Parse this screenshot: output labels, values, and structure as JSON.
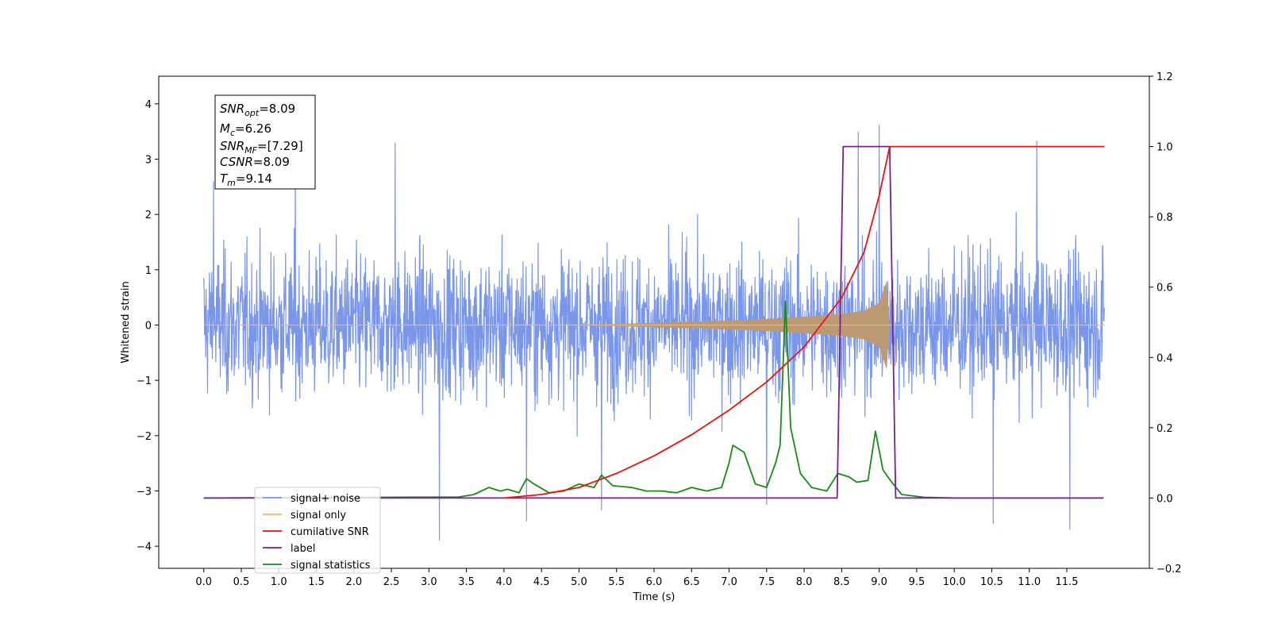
{
  "chart_data": {
    "type": "line",
    "xlabel": "Time (s)",
    "ylabel": "Whitened strain",
    "xlim": [
      -0.6,
      12.6
    ],
    "ylim": [
      -4.4,
      4.5
    ],
    "y2lim": [
      -0.2,
      1.2
    ],
    "x_ticks": [
      "0.0",
      "0.5",
      "1.0",
      "1.5",
      "2.0",
      "2.5",
      "3.0",
      "3.5",
      "4.0",
      "4.5",
      "5.0",
      "5.5",
      "6.0",
      "6.5",
      "7.0",
      "7.5",
      "8.0",
      "8.5",
      "9.0",
      "9.5",
      "10.0",
      "10.5",
      "11.0",
      "11.5"
    ],
    "x_tick_values": [
      0,
      0.5,
      1,
      1.5,
      2,
      2.5,
      3,
      3.5,
      4,
      4.5,
      5,
      5.5,
      6,
      6.5,
      7,
      7.5,
      8,
      8.5,
      9,
      9.5,
      10,
      10.5,
      11,
      11.5
    ],
    "y_ticks": [
      "−4",
      "−3",
      "−2",
      "−1",
      "0",
      "1",
      "2",
      "3",
      "4"
    ],
    "y_tick_values": [
      -4,
      -3,
      -2,
      -1,
      0,
      1,
      2,
      3,
      4
    ],
    "y2_ticks": [
      "−0.2",
      "0.0",
      "0.2",
      "0.4",
      "0.6",
      "0.8",
      "1.0",
      "1.2"
    ],
    "y2_tick_values": [
      -0.2,
      0,
      0.2,
      0.4,
      0.6,
      0.8,
      1.0,
      1.2
    ],
    "legend_placement": "lower-left",
    "annotation": {
      "lines": [
        {
          "base": "SNR",
          "sub": "opt",
          "rest": "=8.09"
        },
        {
          "base": "M",
          "sub": "c",
          "rest": "=6.26"
        },
        {
          "base": "SNR",
          "sub": "MF",
          "rest": "=[7.29]"
        },
        {
          "base": "CSNR",
          "sub": "",
          "rest": "=8.09"
        },
        {
          "base": "T",
          "sub": "m",
          "rest": "=9.14"
        }
      ]
    },
    "series": [
      {
        "name": "signal+ noise",
        "axis": "left",
        "color": "#7a96e8",
        "note_style": "noise band",
        "x_range": [
          0.0,
          12.0
        ],
        "typical_amplitude": [
          -2.3,
          2.2
        ],
        "spikes": [
          [
            3.14,
            -3.9
          ],
          [
            4.3,
            -3.55
          ],
          [
            5.3,
            -3.35
          ],
          [
            8.72,
            3.5
          ],
          [
            9.0,
            3.62
          ],
          [
            10.52,
            -3.6
          ],
          [
            11.1,
            3.33
          ],
          [
            11.54,
            -3.7
          ],
          [
            7.5,
            -3.25
          ],
          [
            0.13,
            2.6
          ],
          [
            2.55,
            3.3
          ],
          [
            1.22,
            3.1
          ]
        ]
      },
      {
        "name": "signal only",
        "axis": "left",
        "color": "#f2b36b",
        "note_style": "chirp",
        "points": [
          [
            0,
            0
          ],
          [
            4.5,
            0
          ],
          [
            5.5,
            0.02
          ],
          [
            6.5,
            0.06
          ],
          [
            7.0,
            0.08
          ],
          [
            7.5,
            0.11
          ],
          [
            8.0,
            0.15
          ],
          [
            8.5,
            0.2
          ],
          [
            8.8,
            0.26
          ],
          [
            9.0,
            0.4
          ],
          [
            9.1,
            0.8
          ],
          [
            9.14,
            0
          ],
          [
            12.0,
            0
          ]
        ]
      },
      {
        "name": "cumilative SNR",
        "axis": "right",
        "color": "#ee1111",
        "points": [
          [
            4.0,
            0.0
          ],
          [
            4.5,
            0.01
          ],
          [
            5.0,
            0.03
          ],
          [
            5.5,
            0.07
          ],
          [
            6.0,
            0.12
          ],
          [
            6.5,
            0.18
          ],
          [
            7.0,
            0.25
          ],
          [
            7.5,
            0.33
          ],
          [
            8.0,
            0.43
          ],
          [
            8.5,
            0.57
          ],
          [
            8.8,
            0.7
          ],
          [
            9.0,
            0.86
          ],
          [
            9.14,
            1.0
          ],
          [
            12.0,
            1.0
          ]
        ]
      },
      {
        "name": "label",
        "axis": "right",
        "color": "#7a1f8c",
        "points": [
          [
            0,
            0
          ],
          [
            8.44,
            0
          ],
          [
            8.52,
            1.0
          ],
          [
            9.14,
            1.0
          ],
          [
            9.22,
            0
          ],
          [
            11.99,
            0
          ]
        ]
      },
      {
        "name": "signal statistics",
        "axis": "right",
        "color": "#1a8a1a",
        "points": [
          [
            0,
            0
          ],
          [
            3.4,
            0.003
          ],
          [
            3.6,
            0.01
          ],
          [
            3.8,
            0.03
          ],
          [
            3.95,
            0.02
          ],
          [
            4.05,
            0.025
          ],
          [
            4.2,
            0.015
          ],
          [
            4.3,
            0.055
          ],
          [
            4.4,
            0.04
          ],
          [
            4.6,
            0.015
          ],
          [
            4.8,
            0.02
          ],
          [
            5.0,
            0.04
          ],
          [
            5.2,
            0.03
          ],
          [
            5.3,
            0.065
          ],
          [
            5.45,
            0.035
          ],
          [
            5.7,
            0.03
          ],
          [
            5.9,
            0.02
          ],
          [
            6.1,
            0.02
          ],
          [
            6.3,
            0.015
          ],
          [
            6.5,
            0.03
          ],
          [
            6.7,
            0.02
          ],
          [
            6.9,
            0.03
          ],
          [
            7.0,
            0.1
          ],
          [
            7.05,
            0.15
          ],
          [
            7.2,
            0.13
          ],
          [
            7.35,
            0.04
          ],
          [
            7.5,
            0.03
          ],
          [
            7.62,
            0.1
          ],
          [
            7.68,
            0.15
          ],
          [
            7.75,
            0.56
          ],
          [
            7.82,
            0.2
          ],
          [
            7.95,
            0.07
          ],
          [
            8.1,
            0.03
          ],
          [
            8.3,
            0.02
          ],
          [
            8.45,
            0.07
          ],
          [
            8.6,
            0.06
          ],
          [
            8.7,
            0.045
          ],
          [
            8.85,
            0.05
          ],
          [
            8.95,
            0.19
          ],
          [
            9.05,
            0.08
          ],
          [
            9.15,
            0.05
          ],
          [
            9.3,
            0.01
          ],
          [
            9.6,
            0.002
          ],
          [
            10.0,
            0
          ],
          [
            11.99,
            0
          ]
        ]
      }
    ]
  }
}
